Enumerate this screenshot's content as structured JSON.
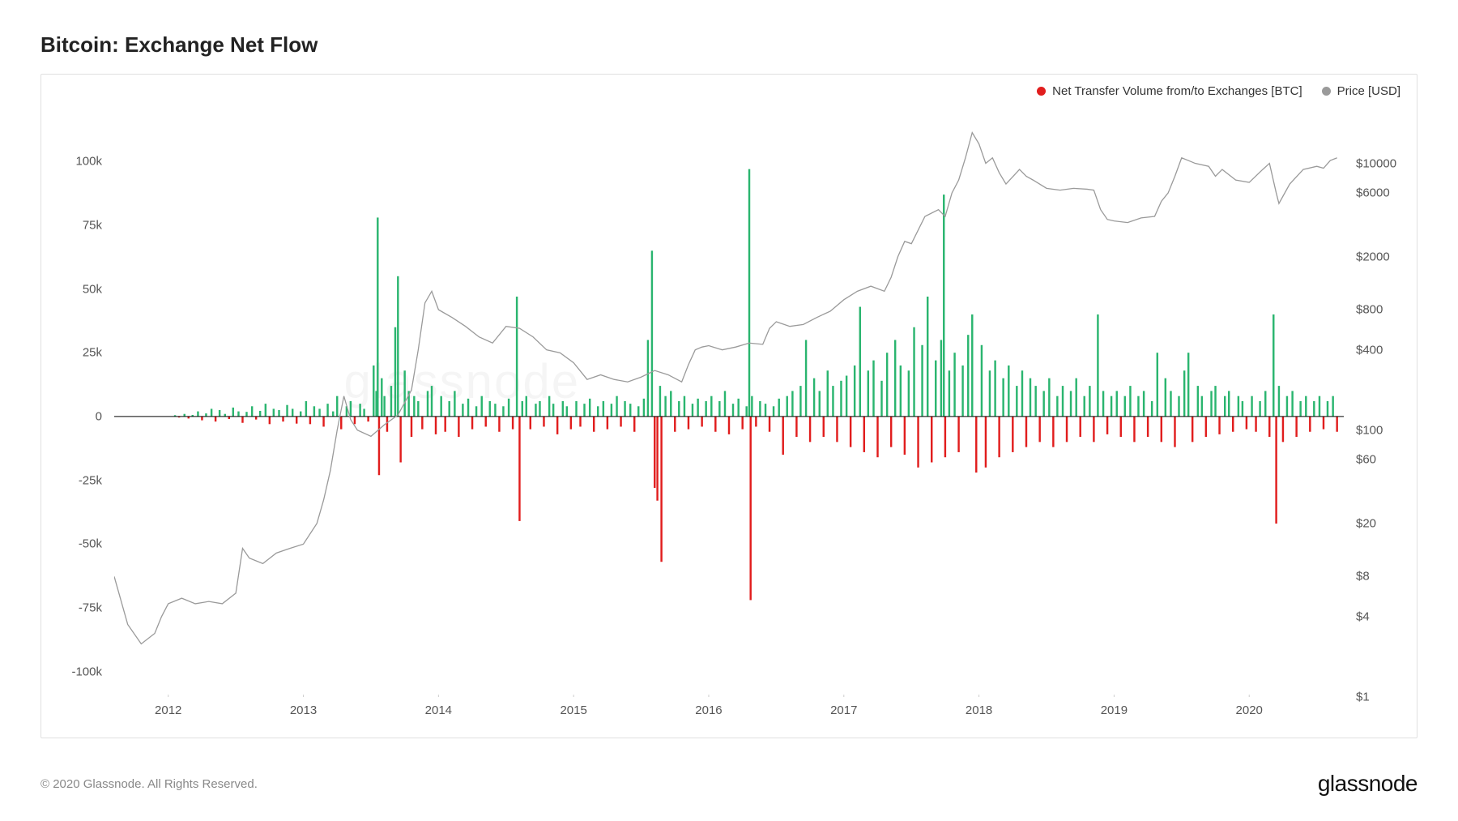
{
  "title": "Bitcoin: Exchange Net Flow",
  "legend": {
    "series1": {
      "label": "Net Transfer Volume from/to Exchanges [BTC]",
      "color": "#e11d1d"
    },
    "series2": {
      "label": "Price [USD]",
      "color": "#9a9a9a"
    }
  },
  "watermark": "glassnode",
  "copyright": "© 2020 Glassnode. All Rights Reserved.",
  "brand": "glassnode",
  "chart": {
    "type": "bar+line-dual-axis",
    "background_color": "#ffffff",
    "border_color": "#e0e0e0",
    "positive_bar_color": "#2ab56f",
    "negative_bar_color": "#e11d1d",
    "price_line_color": "#9a9a9a",
    "baseline_color": "#000000",
    "x_range": [
      2011.6,
      2020.7
    ],
    "x_ticks": [
      2012,
      2013,
      2014,
      2015,
      2016,
      2017,
      2018,
      2019,
      2020
    ],
    "left_axis": {
      "scale": "linear",
      "min": -110000,
      "max": 115000,
      "ticks": [
        -100000,
        -75000,
        -50000,
        -25000,
        0,
        25000,
        50000,
        75000,
        100000
      ],
      "tick_labels": [
        "-100k",
        "-75k",
        "-50k",
        "-25k",
        "0",
        "25k",
        "50k",
        "75k",
        "100k"
      ]
    },
    "right_axis": {
      "scale": "log",
      "min": 1,
      "max": 20000,
      "ticks": [
        1,
        4,
        8,
        20,
        60,
        100,
        400,
        800,
        2000,
        6000,
        10000
      ],
      "tick_labels": [
        "$1",
        "$4",
        "$8",
        "$20",
        "$60",
        "$100",
        "$400",
        "$800",
        "$2000",
        "$6000",
        "$10000"
      ]
    },
    "bars": [
      [
        2012.05,
        0.5
      ],
      [
        2012.08,
        -0.4
      ],
      [
        2012.12,
        1
      ],
      [
        2012.15,
        -0.8
      ],
      [
        2012.18,
        0.6
      ],
      [
        2012.22,
        2
      ],
      [
        2012.25,
        -1.5
      ],
      [
        2012.28,
        1.2
      ],
      [
        2012.32,
        3
      ],
      [
        2012.35,
        -2
      ],
      [
        2012.38,
        2.5
      ],
      [
        2012.42,
        1
      ],
      [
        2012.45,
        -1
      ],
      [
        2012.48,
        3.5
      ],
      [
        2012.52,
        2
      ],
      [
        2012.55,
        -2.5
      ],
      [
        2012.58,
        1.8
      ],
      [
        2012.62,
        4
      ],
      [
        2012.65,
        -1.2
      ],
      [
        2012.68,
        2.2
      ],
      [
        2012.72,
        5
      ],
      [
        2012.75,
        -3
      ],
      [
        2012.78,
        3
      ],
      [
        2012.82,
        2.5
      ],
      [
        2012.85,
        -2
      ],
      [
        2012.88,
        4.5
      ],
      [
        2012.92,
        3
      ],
      [
        2012.95,
        -2.8
      ],
      [
        2012.98,
        2
      ],
      [
        2013.02,
        6
      ],
      [
        2013.05,
        -3
      ],
      [
        2013.08,
        4
      ],
      [
        2013.12,
        3
      ],
      [
        2013.15,
        -4
      ],
      [
        2013.18,
        5
      ],
      [
        2013.22,
        2
      ],
      [
        2013.25,
        8
      ],
      [
        2013.28,
        -5
      ],
      [
        2013.32,
        4
      ],
      [
        2013.35,
        6
      ],
      [
        2013.38,
        -3
      ],
      [
        2013.42,
        5
      ],
      [
        2013.45,
        3
      ],
      [
        2013.48,
        -2
      ],
      [
        2013.52,
        20
      ],
      [
        2013.54,
        10
      ],
      [
        2013.55,
        78
      ],
      [
        2013.56,
        -23
      ],
      [
        2013.58,
        15
      ],
      [
        2013.6,
        8
      ],
      [
        2013.62,
        -6
      ],
      [
        2013.65,
        12
      ],
      [
        2013.68,
        35
      ],
      [
        2013.7,
        55
      ],
      [
        2013.72,
        -18
      ],
      [
        2013.75,
        18
      ],
      [
        2013.78,
        10
      ],
      [
        2013.8,
        -8
      ],
      [
        2013.82,
        8
      ],
      [
        2013.85,
        6
      ],
      [
        2013.88,
        -5
      ],
      [
        2013.92,
        10
      ],
      [
        2013.95,
        12
      ],
      [
        2013.98,
        -7
      ],
      [
        2014.02,
        8
      ],
      [
        2014.05,
        -6
      ],
      [
        2014.08,
        6
      ],
      [
        2014.12,
        10
      ],
      [
        2014.15,
        -8
      ],
      [
        2014.18,
        5
      ],
      [
        2014.22,
        7
      ],
      [
        2014.25,
        -5
      ],
      [
        2014.28,
        4
      ],
      [
        2014.32,
        8
      ],
      [
        2014.35,
        -4
      ],
      [
        2014.38,
        6
      ],
      [
        2014.42,
        5
      ],
      [
        2014.45,
        -6
      ],
      [
        2014.48,
        4
      ],
      [
        2014.52,
        7
      ],
      [
        2014.55,
        -5
      ],
      [
        2014.58,
        47
      ],
      [
        2014.6,
        -41
      ],
      [
        2014.62,
        6
      ],
      [
        2014.65,
        8
      ],
      [
        2014.68,
        -5
      ],
      [
        2014.72,
        5
      ],
      [
        2014.75,
        6
      ],
      [
        2014.78,
        -4
      ],
      [
        2014.82,
        8
      ],
      [
        2014.85,
        5
      ],
      [
        2014.88,
        -7
      ],
      [
        2014.92,
        6
      ],
      [
        2014.95,
        4
      ],
      [
        2014.98,
        -5
      ],
      [
        2015.02,
        6
      ],
      [
        2015.05,
        -4
      ],
      [
        2015.08,
        5
      ],
      [
        2015.12,
        7
      ],
      [
        2015.15,
        -6
      ],
      [
        2015.18,
        4
      ],
      [
        2015.22,
        6
      ],
      [
        2015.25,
        -5
      ],
      [
        2015.28,
        5
      ],
      [
        2015.32,
        8
      ],
      [
        2015.35,
        -4
      ],
      [
        2015.38,
        6
      ],
      [
        2015.42,
        5
      ],
      [
        2015.45,
        -6
      ],
      [
        2015.48,
        4
      ],
      [
        2015.52,
        7
      ],
      [
        2015.55,
        30
      ],
      [
        2015.58,
        65
      ],
      [
        2015.6,
        -28
      ],
      [
        2015.62,
        -33
      ],
      [
        2015.64,
        12
      ],
      [
        2015.65,
        -57
      ],
      [
        2015.68,
        8
      ],
      [
        2015.72,
        10
      ],
      [
        2015.75,
        -6
      ],
      [
        2015.78,
        6
      ],
      [
        2015.82,
        8
      ],
      [
        2015.85,
        -5
      ],
      [
        2015.88,
        5
      ],
      [
        2015.92,
        7
      ],
      [
        2015.95,
        -4
      ],
      [
        2015.98,
        6
      ],
      [
        2016.02,
        8
      ],
      [
        2016.05,
        -6
      ],
      [
        2016.08,
        6
      ],
      [
        2016.12,
        10
      ],
      [
        2016.15,
        -7
      ],
      [
        2016.18,
        5
      ],
      [
        2016.22,
        7
      ],
      [
        2016.25,
        -5
      ],
      [
        2016.28,
        4
      ],
      [
        2016.3,
        97
      ],
      [
        2016.31,
        -72
      ],
      [
        2016.32,
        8
      ],
      [
        2016.35,
        -4
      ],
      [
        2016.38,
        6
      ],
      [
        2016.42,
        5
      ],
      [
        2016.45,
        -6
      ],
      [
        2016.48,
        4
      ],
      [
        2016.52,
        7
      ],
      [
        2016.55,
        -15
      ],
      [
        2016.58,
        8
      ],
      [
        2016.62,
        10
      ],
      [
        2016.65,
        -8
      ],
      [
        2016.68,
        12
      ],
      [
        2016.72,
        30
      ],
      [
        2016.75,
        -10
      ],
      [
        2016.78,
        15
      ],
      [
        2016.82,
        10
      ],
      [
        2016.85,
        -8
      ],
      [
        2016.88,
        18
      ],
      [
        2016.92,
        12
      ],
      [
        2016.95,
        -10
      ],
      [
        2016.98,
        14
      ],
      [
        2017.02,
        16
      ],
      [
        2017.05,
        -12
      ],
      [
        2017.08,
        20
      ],
      [
        2017.12,
        43
      ],
      [
        2017.15,
        -14
      ],
      [
        2017.18,
        18
      ],
      [
        2017.22,
        22
      ],
      [
        2017.25,
        -16
      ],
      [
        2017.28,
        14
      ],
      [
        2017.32,
        25
      ],
      [
        2017.35,
        -12
      ],
      [
        2017.38,
        30
      ],
      [
        2017.42,
        20
      ],
      [
        2017.45,
        -15
      ],
      [
        2017.48,
        18
      ],
      [
        2017.52,
        35
      ],
      [
        2017.55,
        -20
      ],
      [
        2017.58,
        28
      ],
      [
        2017.62,
        47
      ],
      [
        2017.65,
        -18
      ],
      [
        2017.68,
        22
      ],
      [
        2017.72,
        30
      ],
      [
        2017.74,
        87
      ],
      [
        2017.75,
        -16
      ],
      [
        2017.78,
        18
      ],
      [
        2017.82,
        25
      ],
      [
        2017.85,
        -14
      ],
      [
        2017.88,
        20
      ],
      [
        2017.92,
        32
      ],
      [
        2017.95,
        40
      ],
      [
        2017.98,
        -22
      ],
      [
        2018.02,
        28
      ],
      [
        2018.05,
        -20
      ],
      [
        2018.08,
        18
      ],
      [
        2018.12,
        22
      ],
      [
        2018.15,
        -16
      ],
      [
        2018.18,
        15
      ],
      [
        2018.22,
        20
      ],
      [
        2018.25,
        -14
      ],
      [
        2018.28,
        12
      ],
      [
        2018.32,
        18
      ],
      [
        2018.35,
        -12
      ],
      [
        2018.38,
        15
      ],
      [
        2018.42,
        12
      ],
      [
        2018.45,
        -10
      ],
      [
        2018.48,
        10
      ],
      [
        2018.52,
        15
      ],
      [
        2018.55,
        -12
      ],
      [
        2018.58,
        8
      ],
      [
        2018.62,
        12
      ],
      [
        2018.65,
        -10
      ],
      [
        2018.68,
        10
      ],
      [
        2018.72,
        15
      ],
      [
        2018.75,
        -8
      ],
      [
        2018.78,
        8
      ],
      [
        2018.82,
        12
      ],
      [
        2018.85,
        -10
      ],
      [
        2018.88,
        40
      ],
      [
        2018.92,
        10
      ],
      [
        2018.95,
        -7
      ],
      [
        2018.98,
        8
      ],
      [
        2019.02,
        10
      ],
      [
        2019.05,
        -8
      ],
      [
        2019.08,
        8
      ],
      [
        2019.12,
        12
      ],
      [
        2019.15,
        -10
      ],
      [
        2019.18,
        8
      ],
      [
        2019.22,
        10
      ],
      [
        2019.25,
        -8
      ],
      [
        2019.28,
        6
      ],
      [
        2019.32,
        25
      ],
      [
        2019.35,
        -10
      ],
      [
        2019.38,
        15
      ],
      [
        2019.42,
        10
      ],
      [
        2019.45,
        -12
      ],
      [
        2019.48,
        8
      ],
      [
        2019.52,
        18
      ],
      [
        2019.55,
        25
      ],
      [
        2019.58,
        -10
      ],
      [
        2019.62,
        12
      ],
      [
        2019.65,
        8
      ],
      [
        2019.68,
        -8
      ],
      [
        2019.72,
        10
      ],
      [
        2019.75,
        12
      ],
      [
        2019.78,
        -7
      ],
      [
        2019.82,
        8
      ],
      [
        2019.85,
        10
      ],
      [
        2019.88,
        -6
      ],
      [
        2019.92,
        8
      ],
      [
        2019.95,
        6
      ],
      [
        2019.98,
        -5
      ],
      [
        2020.02,
        8
      ],
      [
        2020.05,
        -6
      ],
      [
        2020.08,
        6
      ],
      [
        2020.12,
        10
      ],
      [
        2020.15,
        -8
      ],
      [
        2020.18,
        40
      ],
      [
        2020.2,
        -42
      ],
      [
        2020.22,
        12
      ],
      [
        2020.25,
        -10
      ],
      [
        2020.28,
        8
      ],
      [
        2020.32,
        10
      ],
      [
        2020.35,
        -8
      ],
      [
        2020.38,
        6
      ],
      [
        2020.42,
        8
      ],
      [
        2020.45,
        -6
      ],
      [
        2020.48,
        6
      ],
      [
        2020.52,
        8
      ],
      [
        2020.55,
        -5
      ],
      [
        2020.58,
        6
      ],
      [
        2020.62,
        8
      ],
      [
        2020.65,
        -6
      ]
    ],
    "price": [
      [
        2011.6,
        8
      ],
      [
        2011.7,
        3.5
      ],
      [
        2011.8,
        2.5
      ],
      [
        2011.9,
        3
      ],
      [
        2011.95,
        4
      ],
      [
        2012.0,
        5
      ],
      [
        2012.1,
        5.5
      ],
      [
        2012.2,
        5
      ],
      [
        2012.3,
        5.2
      ],
      [
        2012.4,
        5
      ],
      [
        2012.5,
        6
      ],
      [
        2012.55,
        13
      ],
      [
        2012.6,
        11
      ],
      [
        2012.7,
        10
      ],
      [
        2012.8,
        12
      ],
      [
        2012.9,
        13
      ],
      [
        2013.0,
        14
      ],
      [
        2013.1,
        20
      ],
      [
        2013.15,
        30
      ],
      [
        2013.2,
        50
      ],
      [
        2013.25,
        100
      ],
      [
        2013.3,
        180
      ],
      [
        2013.35,
        120
      ],
      [
        2013.4,
        100
      ],
      [
        2013.5,
        90
      ],
      [
        2013.6,
        110
      ],
      [
        2013.7,
        130
      ],
      [
        2013.8,
        200
      ],
      [
        2013.85,
        400
      ],
      [
        2013.9,
        900
      ],
      [
        2013.95,
        1100
      ],
      [
        2014.0,
        800
      ],
      [
        2014.1,
        700
      ],
      [
        2014.2,
        600
      ],
      [
        2014.3,
        500
      ],
      [
        2014.4,
        450
      ],
      [
        2014.5,
        600
      ],
      [
        2014.6,
        580
      ],
      [
        2014.7,
        500
      ],
      [
        2014.8,
        400
      ],
      [
        2014.9,
        380
      ],
      [
        2015.0,
        320
      ],
      [
        2015.1,
        240
      ],
      [
        2015.2,
        260
      ],
      [
        2015.3,
        240
      ],
      [
        2015.4,
        230
      ],
      [
        2015.5,
        250
      ],
      [
        2015.6,
        280
      ],
      [
        2015.7,
        260
      ],
      [
        2015.8,
        230
      ],
      [
        2015.85,
        310
      ],
      [
        2015.9,
        400
      ],
      [
        2015.95,
        420
      ],
      [
        2016.0,
        430
      ],
      [
        2016.1,
        400
      ],
      [
        2016.2,
        420
      ],
      [
        2016.3,
        450
      ],
      [
        2016.4,
        440
      ],
      [
        2016.45,
        580
      ],
      [
        2016.5,
        650
      ],
      [
        2016.6,
        600
      ],
      [
        2016.7,
        620
      ],
      [
        2016.8,
        700
      ],
      [
        2016.9,
        780
      ],
      [
        2017.0,
        950
      ],
      [
        2017.1,
        1100
      ],
      [
        2017.2,
        1200
      ],
      [
        2017.3,
        1100
      ],
      [
        2017.35,
        1400
      ],
      [
        2017.4,
        2000
      ],
      [
        2017.45,
        2600
      ],
      [
        2017.5,
        2500
      ],
      [
        2017.6,
        4000
      ],
      [
        2017.7,
        4500
      ],
      [
        2017.75,
        4000
      ],
      [
        2017.8,
        6000
      ],
      [
        2017.85,
        7500
      ],
      [
        2017.9,
        11000
      ],
      [
        2017.95,
        17000
      ],
      [
        2018.0,
        14000
      ],
      [
        2018.05,
        10000
      ],
      [
        2018.1,
        11000
      ],
      [
        2018.15,
        8500
      ],
      [
        2018.2,
        7000
      ],
      [
        2018.3,
        9000
      ],
      [
        2018.35,
        8000
      ],
      [
        2018.4,
        7500
      ],
      [
        2018.5,
        6500
      ],
      [
        2018.6,
        6300
      ],
      [
        2018.7,
        6500
      ],
      [
        2018.8,
        6400
      ],
      [
        2018.85,
        6300
      ],
      [
        2018.9,
        4500
      ],
      [
        2018.95,
        3800
      ],
      [
        2019.0,
        3700
      ],
      [
        2019.1,
        3600
      ],
      [
        2019.2,
        3900
      ],
      [
        2019.3,
        4000
      ],
      [
        2019.35,
        5200
      ],
      [
        2019.4,
        6000
      ],
      [
        2019.45,
        8000
      ],
      [
        2019.5,
        11000
      ],
      [
        2019.55,
        10500
      ],
      [
        2019.6,
        10000
      ],
      [
        2019.7,
        9500
      ],
      [
        2019.75,
        8000
      ],
      [
        2019.8,
        9000
      ],
      [
        2019.9,
        7500
      ],
      [
        2020.0,
        7200
      ],
      [
        2020.1,
        9000
      ],
      [
        2020.15,
        10000
      ],
      [
        2020.2,
        6000
      ],
      [
        2020.22,
        5000
      ],
      [
        2020.3,
        7000
      ],
      [
        2020.4,
        9000
      ],
      [
        2020.5,
        9500
      ],
      [
        2020.55,
        9200
      ],
      [
        2020.6,
        10500
      ],
      [
        2020.65,
        11000
      ]
    ]
  }
}
